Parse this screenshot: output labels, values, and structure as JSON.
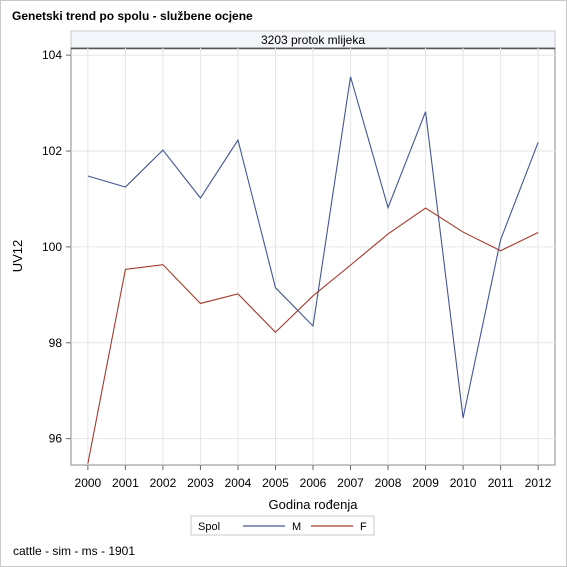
{
  "title": "Genetski trend po spolu - službene ocjene",
  "footnote": "cattle - sim - ms - 1901",
  "chart_data": {
    "type": "line",
    "panel_title": "3203 protok mlijeka",
    "xlabel": "Godina rođenja",
    "ylabel": "UV12",
    "x": [
      2000,
      2001,
      2002,
      2003,
      2004,
      2005,
      2006,
      2007,
      2008,
      2009,
      2010,
      2011,
      2012
    ],
    "xlim": [
      1999.55,
      2012.45
    ],
    "ylim": [
      95.45,
      104.15
    ],
    "yticks": [
      96,
      98,
      100,
      102,
      104
    ],
    "grid": true,
    "legend": {
      "title": "Spol",
      "position": "bottom-center"
    },
    "series": [
      {
        "name": "M",
        "color": "#445694",
        "values": [
          101.48,
          101.25,
          102.02,
          101.02,
          102.23,
          99.15,
          98.35,
          103.55,
          100.82,
          102.82,
          96.43,
          100.15,
          102.18
        ]
      },
      {
        "name": "F",
        "color": "#a23a2e",
        "values": [
          95.48,
          99.53,
          99.63,
          98.82,
          99.02,
          98.22,
          98.98,
          99.62,
          100.27,
          100.81,
          100.31,
          99.92,
          100.3
        ]
      }
    ]
  }
}
